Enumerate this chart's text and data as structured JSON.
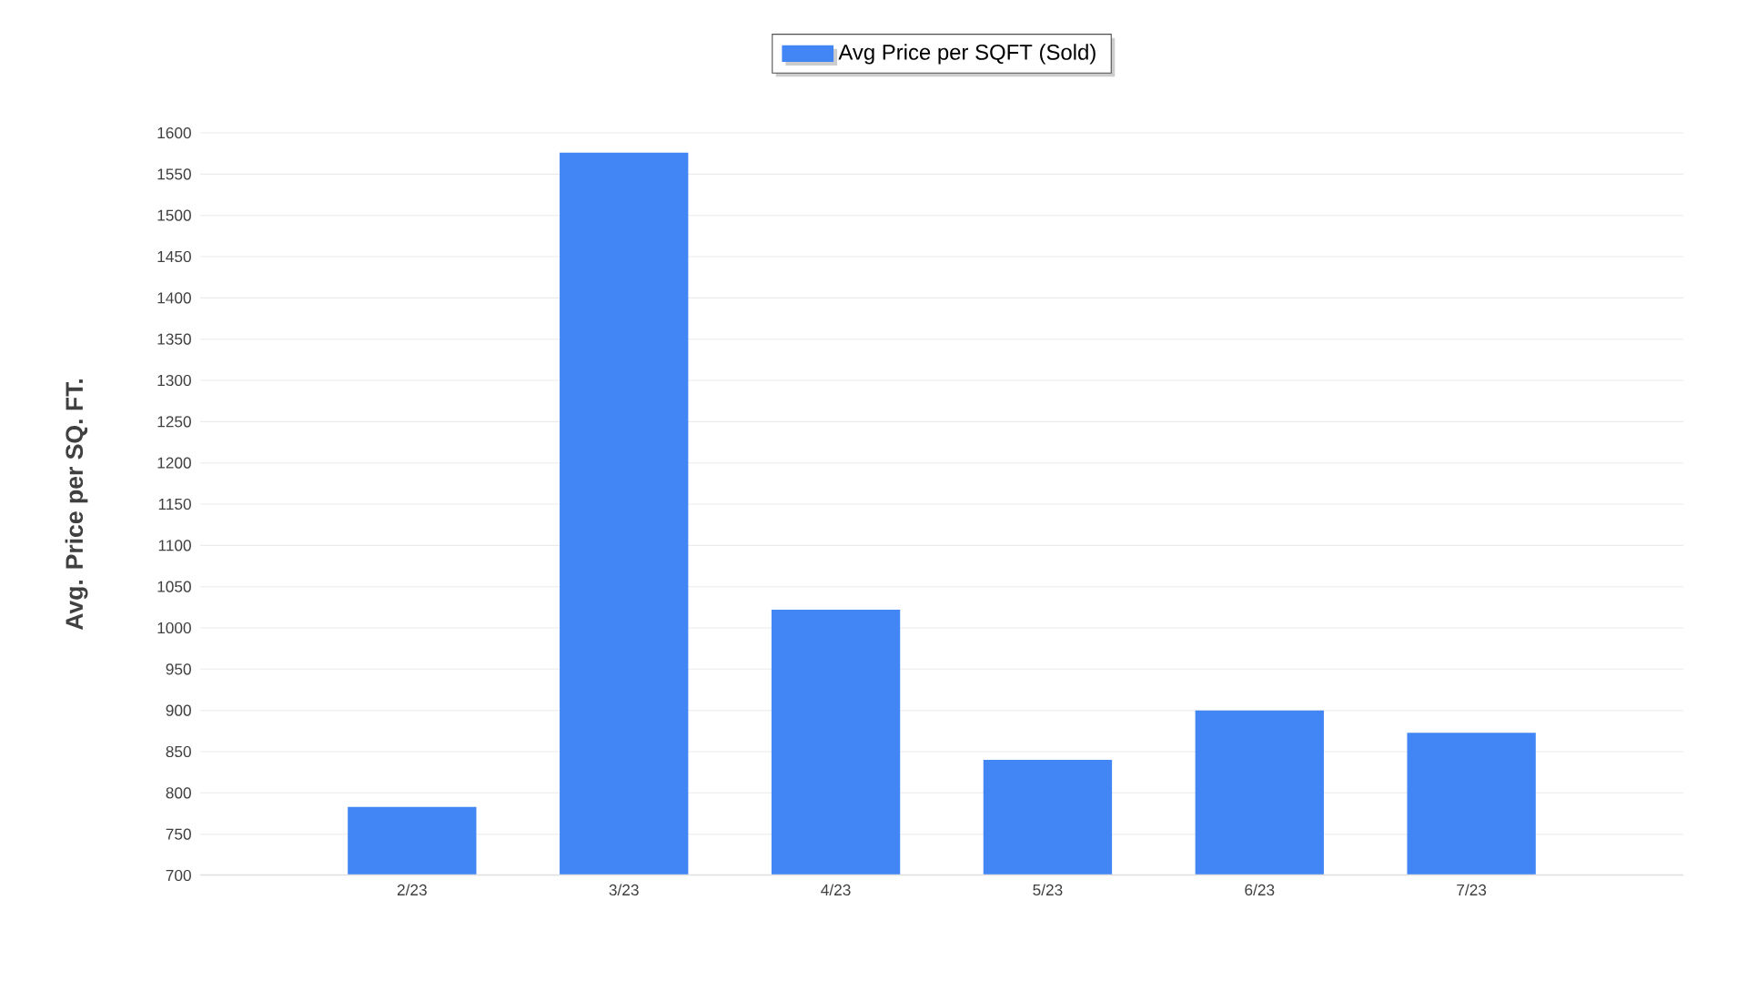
{
  "chart_data": {
    "type": "bar",
    "ylabel": "Avg. Price per SQ. FT.",
    "categories": [
      "2/23",
      "3/23",
      "4/23",
      "5/23",
      "6/23",
      "7/23"
    ],
    "series": [
      {
        "name": "Avg Price per SQFT (Sold)",
        "color": "#4285f4",
        "values": [
          783,
          1576,
          1022,
          840,
          900,
          873
        ]
      }
    ],
    "ylim": [
      700,
      1600
    ],
    "yticks": [
      700,
      750,
      800,
      850,
      900,
      950,
      1000,
      1050,
      1100,
      1150,
      1200,
      1250,
      1300,
      1350,
      1400,
      1450,
      1500,
      1550,
      1600
    ],
    "grid": "y",
    "legend": "top"
  }
}
